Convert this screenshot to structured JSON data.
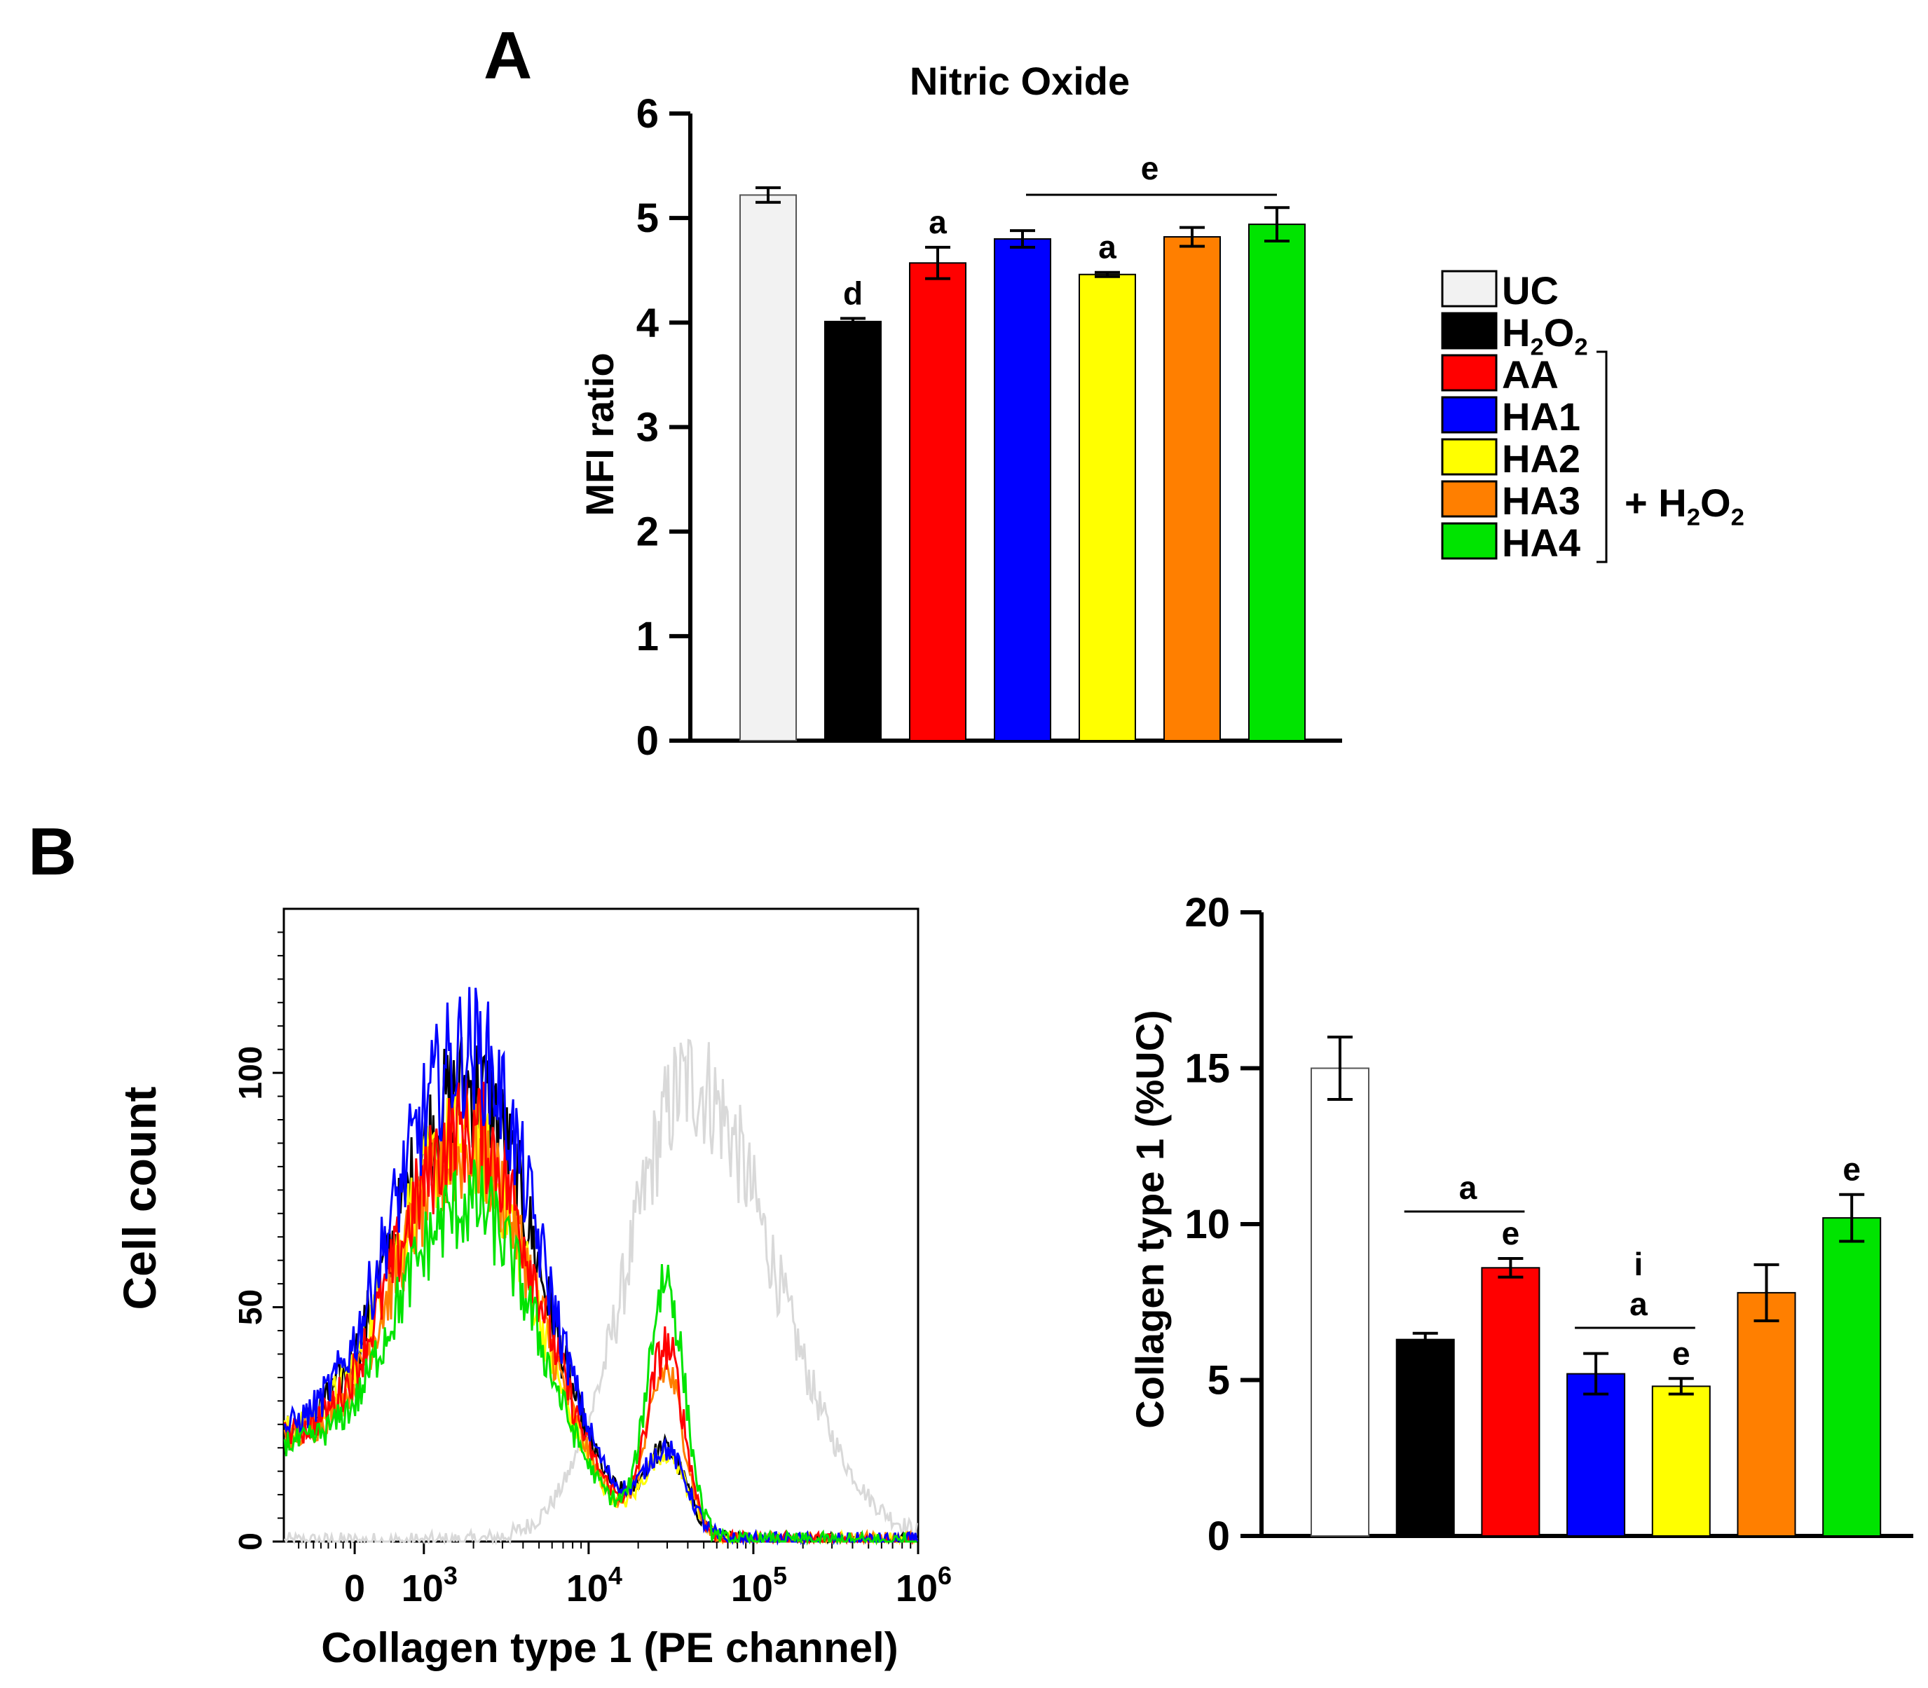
{
  "panel_labels": {
    "a": "A",
    "b": "B"
  },
  "legend": {
    "items": [
      {
        "label": "UC",
        "color": "#f2f2f2"
      },
      {
        "label": "H",
        "sub1": "2",
        "mid": "O",
        "sub2": "2",
        "color": "#000000"
      },
      {
        "label": "AA",
        "color": "#ff0000"
      },
      {
        "label": "HA1",
        "color": "#0000ff"
      },
      {
        "label": "HA2",
        "color": "#ffff00"
      },
      {
        "label": "HA3",
        "color": "#ff7f00"
      },
      {
        "label": "HA4",
        "color": "#00e400"
      }
    ],
    "bracket_text": {
      "prefix": "+ H",
      "sub1": "2",
      "mid": "O",
      "sub2": "2"
    }
  },
  "chart_data": [
    {
      "id": "A",
      "type": "bar",
      "title": "Nitric Oxide",
      "ylabel": "MFI ratio",
      "xlabel": "",
      "ylim": [
        0,
        6
      ],
      "yticks": [
        "0",
        "1",
        "2",
        "3",
        "4",
        "5",
        "6"
      ],
      "categories": [
        "UC",
        "H2O2",
        "AA",
        "HA1",
        "HA2",
        "HA3",
        "HA4"
      ],
      "values": [
        5.22,
        4.01,
        4.57,
        4.8,
        4.46,
        4.82,
        4.94
      ],
      "errors": [
        0.07,
        0.03,
        0.15,
        0.08,
        0.02,
        0.09,
        0.16
      ],
      "colors": [
        "#f2f2f2",
        "#000000",
        "#ff0000",
        "#0000ff",
        "#ffff00",
        "#ff7f00",
        "#00e400"
      ],
      "annotations": [
        "",
        "d",
        "a",
        "",
        "a",
        "",
        ""
      ],
      "group_annotation": {
        "label": "e",
        "from": "HA1",
        "to": "HA4"
      }
    },
    {
      "id": "B-histogram",
      "type": "line",
      "xlabel": "Collagen type 1  (PE channel)",
      "ylabel": "Cell count",
      "ylim": [
        0,
        135
      ],
      "yticks": [
        "0",
        "50",
        "100"
      ],
      "xtick_labels": {
        "zero": "0",
        "t3": "10",
        "e3": "3",
        "t4": "10",
        "e4": "4",
        "t5": "10",
        "e5": "5",
        "t6": "10",
        "e6": "6"
      },
      "series": [
        {
          "key": "UC",
          "color": "#d9d9d9",
          "peak_x": 4.62,
          "peak_y": 98
        },
        {
          "key": "H2O2",
          "color": "#000000",
          "peak_x": 3.28,
          "peak_y": 97
        },
        {
          "key": "AA",
          "color": "#ff0000",
          "peak_x": 3.28,
          "peak_y": 88,
          "second_peak_x": 4.47,
          "second_peak_y": 40
        },
        {
          "key": "HA1",
          "color": "#0000ff",
          "peak_x": 3.28,
          "peak_y": 105
        },
        {
          "key": "HA2",
          "color": "#ffff00",
          "peak_x": 3.25,
          "peak_y": 86
        },
        {
          "key": "HA3",
          "color": "#ff7f00",
          "peak_x": 3.28,
          "peak_y": 83,
          "second_peak_x": 4.47,
          "second_peak_y": 35
        },
        {
          "key": "HA4",
          "color": "#00e400",
          "peak_x": 3.28,
          "peak_y": 72,
          "second_peak_x": 4.47,
          "second_peak_y": 55
        }
      ]
    },
    {
      "id": "B-bar",
      "type": "bar",
      "title": "",
      "ylabel": "Collagen type 1 (%UC)",
      "xlabel": "",
      "ylim": [
        0,
        20
      ],
      "yticks": [
        "0",
        "5",
        "10",
        "15",
        "20"
      ],
      "categories": [
        "UC",
        "H2O2",
        "AA",
        "HA1",
        "HA2",
        "HA3",
        "HA4"
      ],
      "values": [
        15.0,
        6.3,
        8.6,
        5.2,
        4.8,
        7.8,
        10.2
      ],
      "errors": [
        1.0,
        0.2,
        0.3,
        0.65,
        0.25,
        0.9,
        0.75
      ],
      "colors": [
        "#ffffff",
        "#000000",
        "#ff0000",
        "#0000ff",
        "#ffff00",
        "#ff7f00",
        "#00e400"
      ],
      "annotations": [
        "",
        "",
        "e",
        "",
        "e",
        "",
        "e"
      ],
      "group_annotations": [
        {
          "label": "a",
          "from": "H2O2",
          "to": "AA"
        },
        {
          "label": "a",
          "from": "HA1",
          "to": "HA2",
          "extra": "i"
        }
      ]
    }
  ]
}
